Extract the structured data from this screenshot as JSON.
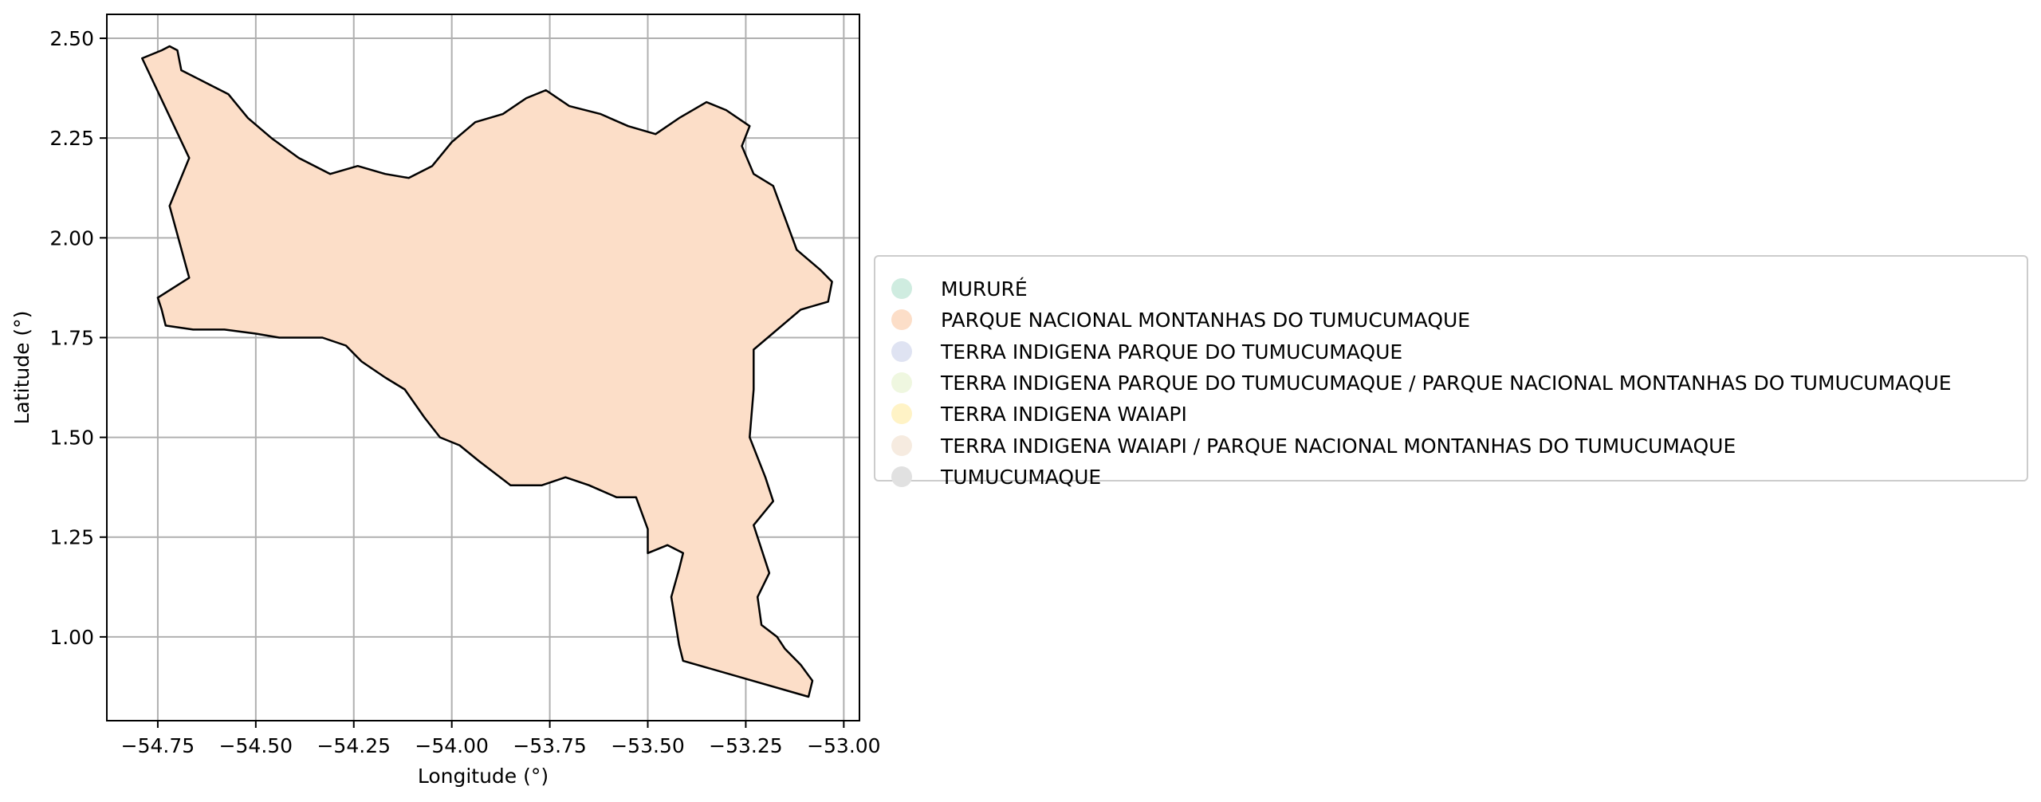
{
  "chart_data": {
    "type": "map",
    "xlabel": "Longitude (°)",
    "ylabel": "Latitude (°)",
    "xlim": [
      -54.88,
      -52.96
    ],
    "ylim": [
      0.79,
      2.56
    ],
    "xticks": [
      -54.75,
      -54.5,
      -54.25,
      -54.0,
      -53.75,
      -53.5,
      -53.25,
      -53.0
    ],
    "xtick_labels": [
      "−54.75",
      "−54.50",
      "−54.25",
      "−54.00",
      "−53.75",
      "−53.50",
      "−53.25",
      "−53.00"
    ],
    "yticks": [
      1.0,
      1.25,
      1.5,
      1.75,
      2.0,
      2.25,
      2.5
    ],
    "ytick_labels": [
      "1.00",
      "1.25",
      "1.50",
      "1.75",
      "2.00",
      "2.25",
      "2.50"
    ],
    "grid": true,
    "legend_position": "right",
    "region": {
      "name": "PARQUE NACIONAL MONTANHAS DO TUMUCUMAQUE",
      "fill": "#fcdec8",
      "outline": "#000000",
      "boundary": [
        [
          -54.79,
          2.45
        ],
        [
          -54.74,
          2.47
        ],
        [
          -54.72,
          2.48
        ],
        [
          -54.7,
          2.47
        ],
        [
          -54.69,
          2.42
        ],
        [
          -54.63,
          2.39
        ],
        [
          -54.57,
          2.36
        ],
        [
          -54.52,
          2.3
        ],
        [
          -54.46,
          2.25
        ],
        [
          -54.39,
          2.2
        ],
        [
          -54.31,
          2.16
        ],
        [
          -54.24,
          2.18
        ],
        [
          -54.17,
          2.16
        ],
        [
          -54.11,
          2.15
        ],
        [
          -54.05,
          2.18
        ],
        [
          -54.0,
          2.24
        ],
        [
          -53.94,
          2.29
        ],
        [
          -53.87,
          2.31
        ],
        [
          -53.81,
          2.35
        ],
        [
          -53.76,
          2.37
        ],
        [
          -53.7,
          2.33
        ],
        [
          -53.62,
          2.31
        ],
        [
          -53.55,
          2.28
        ],
        [
          -53.48,
          2.26
        ],
        [
          -53.42,
          2.3
        ],
        [
          -53.35,
          2.34
        ],
        [
          -53.3,
          2.32
        ],
        [
          -53.24,
          2.28
        ],
        [
          -53.26,
          2.23
        ],
        [
          -53.23,
          2.16
        ],
        [
          -53.18,
          2.13
        ],
        [
          -53.15,
          2.05
        ],
        [
          -53.12,
          1.97
        ],
        [
          -53.06,
          1.92
        ],
        [
          -53.03,
          1.89
        ],
        [
          -53.04,
          1.84
        ],
        [
          -53.11,
          1.82
        ],
        [
          -53.23,
          1.72
        ],
        [
          -53.23,
          1.62
        ],
        [
          -53.24,
          1.5
        ],
        [
          -53.2,
          1.4
        ],
        [
          -53.18,
          1.34
        ],
        [
          -53.23,
          1.28
        ],
        [
          -53.21,
          1.22
        ],
        [
          -53.19,
          1.16
        ],
        [
          -53.22,
          1.1
        ],
        [
          -53.21,
          1.03
        ],
        [
          -53.17,
          1.0
        ],
        [
          -53.15,
          0.97
        ],
        [
          -53.11,
          0.93
        ],
        [
          -53.08,
          0.89
        ],
        [
          -53.09,
          0.85
        ],
        [
          -53.41,
          0.94
        ],
        [
          -53.42,
          0.98
        ],
        [
          -53.43,
          1.04
        ],
        [
          -53.44,
          1.1
        ],
        [
          -53.42,
          1.17
        ],
        [
          -53.41,
          1.21
        ],
        [
          -53.45,
          1.23
        ],
        [
          -53.5,
          1.21
        ],
        [
          -53.5,
          1.27
        ],
        [
          -53.53,
          1.35
        ],
        [
          -53.58,
          1.35
        ],
        [
          -53.65,
          1.38
        ],
        [
          -53.71,
          1.4
        ],
        [
          -53.77,
          1.38
        ],
        [
          -53.85,
          1.38
        ],
        [
          -53.93,
          1.44
        ],
        [
          -53.98,
          1.48
        ],
        [
          -54.03,
          1.5
        ],
        [
          -54.07,
          1.55
        ],
        [
          -54.12,
          1.62
        ],
        [
          -54.17,
          1.65
        ],
        [
          -54.23,
          1.69
        ],
        [
          -54.27,
          1.73
        ],
        [
          -54.33,
          1.75
        ],
        [
          -54.44,
          1.75
        ],
        [
          -54.5,
          1.76
        ],
        [
          -54.58,
          1.77
        ],
        [
          -54.66,
          1.77
        ],
        [
          -54.73,
          1.78
        ],
        [
          -54.74,
          1.82
        ],
        [
          -54.75,
          1.85
        ],
        [
          -54.67,
          1.9
        ],
        [
          -54.72,
          2.08
        ],
        [
          -54.67,
          2.2
        ],
        [
          -54.79,
          2.45
        ]
      ]
    },
    "legend": [
      {
        "label": "MURURÉ",
        "color": "#cfece0"
      },
      {
        "label": "PARQUE NACIONAL MONTANHAS DO TUMUCUMAQUE",
        "color": "#fcdec8"
      },
      {
        "label": "TERRA INDIGENA PARQUE DO TUMUCUMAQUE",
        "color": "#dfe3f2"
      },
      {
        "label": "TERRA INDIGENA PARQUE DO TUMUCUMAQUE / PARQUE NACIONAL MONTANHAS DO TUMUCUMAQUE",
        "color": "#eff7e0"
      },
      {
        "label": "TERRA INDIGENA WAIAPI",
        "color": "#fff3c6"
      },
      {
        "label": "TERRA INDIGENA WAIAPI / PARQUE NACIONAL MONTANHAS DO TUMUCUMAQUE",
        "color": "#f6ebe0"
      },
      {
        "label": "TUMUCUMAQUE",
        "color": "#e1e1e1"
      }
    ]
  }
}
